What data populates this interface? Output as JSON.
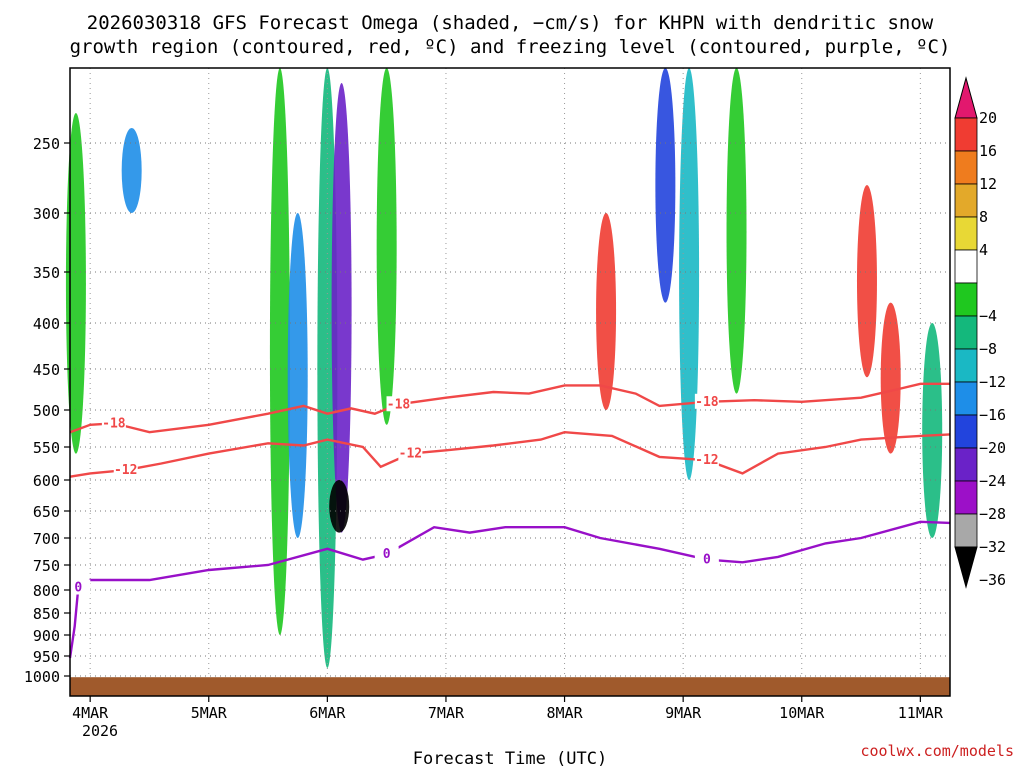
{
  "chart_data": {
    "type": "heatmap",
    "title_line1": "2026030318 GFS Forecast Omega (shaded, −cm/s) for KHPN with dendritic snow",
    "title_line2": "growth region (contoured, red, ºC) and freezing level (contoured, purple, ºC)",
    "xlabel": "Forecast Time (UTC)",
    "ylabel": "",
    "credit": "coolwx.com/models",
    "x_ticks": [
      "4MAR",
      "5MAR",
      "6MAR",
      "7MAR",
      "8MAR",
      "9MAR",
      "10MAR",
      "11MAR"
    ],
    "x_year": "2026",
    "x_range_days": [
      3.83,
      11.25
    ],
    "y_ticks": [
      250,
      300,
      350,
      400,
      450,
      500,
      550,
      600,
      650,
      700,
      750,
      800,
      850,
      900,
      950,
      1000
    ],
    "y_range_hpa": [
      200,
      1025
    ],
    "colorbar": {
      "labels": [
        "20",
        "16",
        "12",
        "8",
        "4",
        "−4",
        "−8",
        "−12",
        "−16",
        "−20",
        "−24",
        "−28",
        "−32",
        "−36"
      ],
      "bins": [
        {
          "from": 20,
          "to": 24,
          "color": "#e2186e"
        },
        {
          "from": 16,
          "to": 20,
          "color": "#f03c32"
        },
        {
          "from": 12,
          "to": 16,
          "color": "#ef7c1e"
        },
        {
          "from": 8,
          "to": 12,
          "color": "#e3a92a"
        },
        {
          "from": 4,
          "to": 8,
          "color": "#e8d835"
        },
        {
          "from": -4,
          "to": 4,
          "color": "#ffffff"
        },
        {
          "from": -8,
          "to": -4,
          "color": "#1fc81f"
        },
        {
          "from": -12,
          "to": -8,
          "color": "#14b87c"
        },
        {
          "from": -16,
          "to": -12,
          "color": "#1ab8c4"
        },
        {
          "from": -20,
          "to": -16,
          "color": "#1e8ee8"
        },
        {
          "from": -24,
          "to": -20,
          "color": "#2244dd"
        },
        {
          "from": -28,
          "to": -24,
          "color": "#6a22c8"
        },
        {
          "from": -32,
          "to": -28,
          "color": "#9c10c8"
        },
        {
          "from": -36,
          "to": -32,
          "color": "#a8a8a8"
        },
        {
          "from": -40,
          "to": -36,
          "color": "#000000"
        }
      ]
    },
    "contours": [
      {
        "name": "-18C isotherm",
        "label": "-18",
        "color": "#f04848",
        "units": "ºC",
        "points": [
          [
            3.83,
            530
          ],
          [
            4.0,
            520
          ],
          [
            4.2,
            518
          ],
          [
            4.5,
            530
          ],
          [
            5.0,
            520
          ],
          [
            5.5,
            505
          ],
          [
            5.8,
            495
          ],
          [
            6.0,
            505
          ],
          [
            6.2,
            498
          ],
          [
            6.4,
            505
          ],
          [
            6.6,
            493
          ],
          [
            7.0,
            485
          ],
          [
            7.4,
            478
          ],
          [
            7.7,
            480
          ],
          [
            8.0,
            470
          ],
          [
            8.3,
            470
          ],
          [
            8.6,
            480
          ],
          [
            8.8,
            495
          ],
          [
            9.2,
            490
          ],
          [
            9.6,
            488
          ],
          [
            10.0,
            490
          ],
          [
            10.5,
            485
          ],
          [
            10.8,
            475
          ],
          [
            11.0,
            468
          ],
          [
            11.25,
            468
          ]
        ]
      },
      {
        "name": "-12C isotherm",
        "label": "-12",
        "color": "#f04848",
        "units": "ºC",
        "points": [
          [
            3.83,
            595
          ],
          [
            4.0,
            590
          ],
          [
            4.3,
            585
          ],
          [
            4.6,
            575
          ],
          [
            5.0,
            560
          ],
          [
            5.5,
            545
          ],
          [
            5.8,
            548
          ],
          [
            6.0,
            540
          ],
          [
            6.3,
            550
          ],
          [
            6.45,
            580
          ],
          [
            6.7,
            560
          ],
          [
            7.0,
            555
          ],
          [
            7.4,
            548
          ],
          [
            7.8,
            540
          ],
          [
            8.0,
            530
          ],
          [
            8.4,
            535
          ],
          [
            8.8,
            565
          ],
          [
            9.2,
            570
          ],
          [
            9.5,
            590
          ],
          [
            9.8,
            560
          ],
          [
            10.2,
            550
          ],
          [
            10.5,
            540
          ],
          [
            11.0,
            535
          ],
          [
            11.25,
            533
          ]
        ]
      },
      {
        "name": "0C freezing level",
        "label": "0",
        "color": "#9810c8",
        "units": "ºC",
        "points": [
          [
            3.83,
            955
          ],
          [
            3.87,
            880
          ],
          [
            3.9,
            795
          ],
          [
            4.0,
            780
          ],
          [
            4.3,
            780
          ],
          [
            4.5,
            780
          ],
          [
            5.0,
            760
          ],
          [
            5.5,
            750
          ],
          [
            6.0,
            720
          ],
          [
            6.3,
            740
          ],
          [
            6.5,
            730
          ],
          [
            6.9,
            680
          ],
          [
            7.2,
            690
          ],
          [
            7.5,
            680
          ],
          [
            8.0,
            680
          ],
          [
            8.3,
            700
          ],
          [
            8.8,
            720
          ],
          [
            9.2,
            740
          ],
          [
            9.5,
            745
          ],
          [
            9.8,
            735
          ],
          [
            10.2,
            710
          ],
          [
            10.5,
            700
          ],
          [
            11.0,
            670
          ],
          [
            11.25,
            672
          ]
        ]
      }
    ],
    "shaded_regions": [
      {
        "x": 3.88,
        "p_top": 230,
        "p_bottom": 560,
        "value": -8
      },
      {
        "x": 4.35,
        "p_top": 240,
        "p_bottom": 300,
        "value": -20
      },
      {
        "x": 5.6,
        "p_top": 200,
        "p_bottom": 900,
        "value": -8
      },
      {
        "x": 5.75,
        "p_top": 300,
        "p_bottom": 700,
        "value": -20
      },
      {
        "x": 6.0,
        "p_top": 200,
        "p_bottom": 980,
        "value": -12
      },
      {
        "x": 6.12,
        "p_top": 210,
        "p_bottom": 690,
        "value": -28
      },
      {
        "x": 6.1,
        "p_top": 600,
        "p_bottom": 690,
        "value": -40
      },
      {
        "x": 6.5,
        "p_top": 200,
        "p_bottom": 520,
        "value": -8
      },
      {
        "x": 8.35,
        "p_top": 300,
        "p_bottom": 500,
        "value": 16
      },
      {
        "x": 8.85,
        "p_top": 200,
        "p_bottom": 380,
        "value": -24
      },
      {
        "x": 9.05,
        "p_top": 200,
        "p_bottom": 600,
        "value": -16
      },
      {
        "x": 9.45,
        "p_top": 200,
        "p_bottom": 480,
        "value": -8
      },
      {
        "x": 10.55,
        "p_top": 280,
        "p_bottom": 460,
        "value": 16
      },
      {
        "x": 10.75,
        "p_top": 380,
        "p_bottom": 560,
        "value": 16
      },
      {
        "x": 11.1,
        "p_top": 400,
        "p_bottom": 700,
        "value": -12
      }
    ],
    "terrain_color": "#a05a2c"
  }
}
